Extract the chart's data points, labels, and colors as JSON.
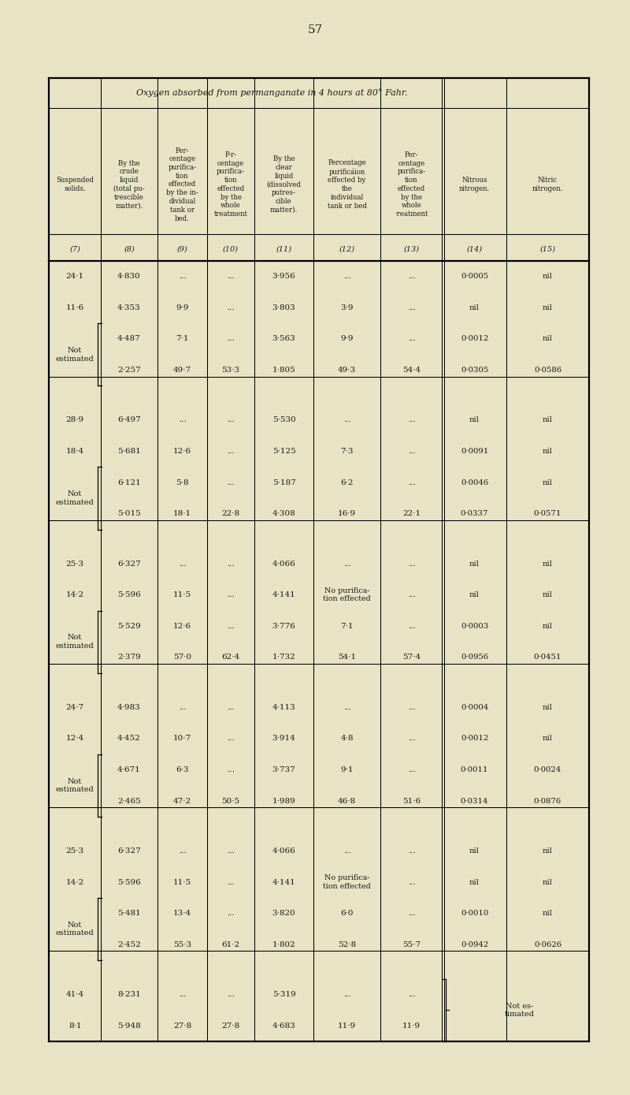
{
  "page_number": "57",
  "bg": "#e8e3c4",
  "text_color": "#1a1a1a",
  "main_header": "Oxygen absorbed from permanganate in 4 hours at 80° Fahr.",
  "col_headers_full": [
    "Suspended\nsolids.",
    "By the\ncrude\nliquid\n(total pu-\ntrescible\nmatter).",
    "Per-\ncentage\npurifica-\ntion\neffected\nby the in-\ndividual\ntank or\nbed.",
    "P-r-\ncentage\npurifica-\ntion\neffected\nby the\nwhole\ntreatment",
    "By the\nclear\nliquid\n(dissolved\nputres-\ncible\nmatter).",
    "Percentage\npurificáion\neffected by\nthe\nindividual\ntank or bed",
    "Per-\ncentage\npurifica-\ntion\neffected\nby the\nwhole\n·reatment",
    "Nitrous\nnitrogen.",
    "Nitric\nnitrogen."
  ],
  "col_nums": [
    "(7)",
    "(8)",
    "(9)",
    "(10)",
    "(11)",
    "(12)",
    "(13)",
    "(14)",
    "(15)"
  ],
  "groups": [
    {
      "rows": [
        [
          "24·1",
          "4·830",
          "...",
          "...",
          "3·956",
          "...",
          "...",
          "0·0005",
          "nil"
        ],
        [
          "11·6",
          "4·353",
          "9·9",
          "...",
          "3·803",
          "3·9",
          "...",
          "nil",
          "nil"
        ],
        [
          "",
          "4·487",
          "7·1",
          "...",
          "3·563",
          "9·9",
          "...",
          "0·0012",
          "nil"
        ],
        [
          "Not\nestimated",
          "2·257",
          "49·7",
          "53·3",
          "1·805",
          "49·3",
          "54·4",
          "0·0305",
          "0·0586"
        ]
      ],
      "bracket_rows": [
        2,
        3
      ],
      "last_group": false
    },
    {
      "rows": [
        [
          "28·9",
          "6·497",
          "...",
          "...",
          "5·530",
          "...",
          "...",
          "nil",
          "nil"
        ],
        [
          "18·4",
          "5·681",
          "12·6",
          "...",
          "5·125",
          "7·3",
          "...",
          "0·0091",
          "nil"
        ],
        [
          "",
          "6·121",
          "5·8",
          "...",
          "5·187",
          "6·2",
          "...",
          "0·0046",
          "nil"
        ],
        [
          "Not\nestimated",
          "5·015",
          "18·1",
          "22·8",
          "4·308",
          "16·9",
          "22·1",
          "0·0337",
          "0·0571"
        ]
      ],
      "bracket_rows": [
        2,
        3
      ],
      "last_group": false
    },
    {
      "rows": [
        [
          "25·3",
          "6·327",
          "...",
          "...",
          "4·066",
          "...",
          "...",
          "nil",
          "nil"
        ],
        [
          "14·2",
          "5·596",
          "11·5",
          "...",
          "4·141",
          "No purifica-\ntion effected",
          "...",
          "nil",
          "nil"
        ],
        [
          "",
          "5·529",
          "12·6",
          "...",
          "3·776",
          "7·1",
          "...",
          "0·0003",
          "nil"
        ],
        [
          "Not\nestimated",
          "2·379",
          "57·0",
          "62·4",
          "1·732",
          "54·1",
          "57·4",
          "0·0956",
          "0·0451"
        ]
      ],
      "bracket_rows": [
        2,
        3
      ],
      "last_group": false
    },
    {
      "rows": [
        [
          "24·7",
          "4·983",
          "...",
          "...",
          "4·113",
          "...",
          "...",
          "0·0004",
          "nil"
        ],
        [
          "12·4",
          "4·452",
          "10·7",
          "...",
          "3·914",
          "4·8",
          "...",
          "0·0012",
          "nil"
        ],
        [
          "",
          "4·671",
          "6·3",
          "...",
          "3·737",
          "9·1",
          "...",
          "0·0011",
          "0·0024"
        ],
        [
          "Not\nestimated",
          "2·465",
          "47·2",
          "50·5",
          "1·989",
          "46·8",
          "51·6",
          "0·0314",
          "0·0876"
        ]
      ],
      "bracket_rows": [
        2,
        3
      ],
      "last_group": false
    },
    {
      "rows": [
        [
          "25·3",
          "6·327",
          "...",
          "...",
          "4·066",
          "...",
          "...",
          "nil",
          "nil"
        ],
        [
          "14·2",
          "5·596",
          "11·5",
          "...",
          "4·141",
          "No purifica-\ntion effected",
          "...",
          "nil",
          "nil"
        ],
        [
          "",
          "5·481",
          "13·4",
          "...",
          "3·820",
          "6·0",
          "...",
          "0·0010",
          "nil"
        ],
        [
          "Not\nestimated",
          "2·452",
          "55·3",
          "61·2",
          "1·802",
          "52·8",
          "55·7",
          "0·0942",
          "0·0626"
        ]
      ],
      "bracket_rows": [
        2,
        3
      ],
      "last_group": false
    },
    {
      "rows": [
        [
          "41·4",
          "8·231",
          "...",
          "...",
          "5·319",
          "...",
          "..."
        ],
        [
          "8·1",
          "5·948",
          "27·8",
          "27·8",
          "4·683",
          "11·9",
          "11·9"
        ]
      ],
      "bracket_rows": [],
      "last_group": true
    }
  ]
}
